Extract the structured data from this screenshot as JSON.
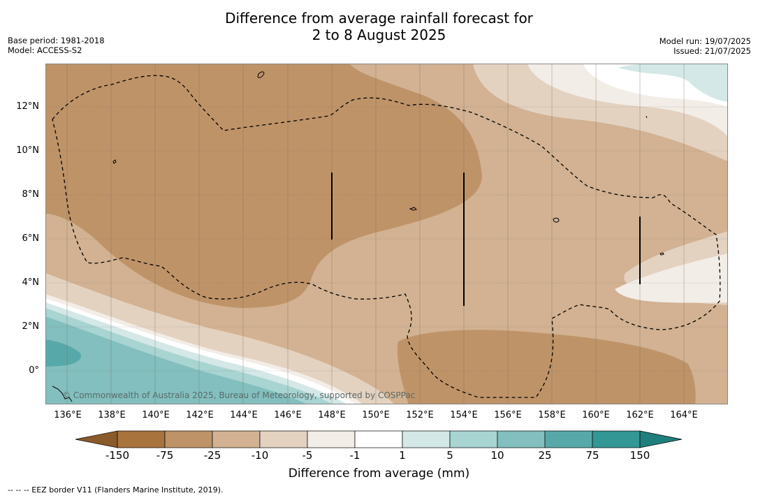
{
  "header": {
    "title_line1": "Difference from average rainfall forecast for",
    "title_line2": "2 to 8 August 2025",
    "base_period": "Base period: 1981-2018",
    "model": "Model: ACCESS-S2",
    "model_run": "Model run: 19/07/2025",
    "issued": "Issued: 21/07/2025"
  },
  "map": {
    "lat_labels": [
      "12°N",
      "10°N",
      "8°N",
      "6°N",
      "4°N",
      "2°N",
      "0°"
    ],
    "lon_labels": [
      "136°E",
      "138°E",
      "140°E",
      "142°E",
      "144°E",
      "146°E",
      "148°E",
      "150°E",
      "152°E",
      "154°E",
      "156°E",
      "158°E",
      "160°E",
      "162°E",
      "164°E"
    ],
    "credit": "© Commonwealth of Australia 2025, Bureau of Meteorology, supported by COSPPac"
  },
  "colorbar": {
    "ticks": [
      "-150",
      "-75",
      "-25",
      "-10",
      "-5",
      "-1",
      "1",
      "5",
      "10",
      "25",
      "75",
      "150"
    ],
    "colors": [
      "#a9733d",
      "#bf9368",
      "#d2b292",
      "#e4d2c1",
      "#f3ede7",
      "#ffffff",
      "#d3e8e7",
      "#a8d4d2",
      "#82bfbe",
      "#57a9a9",
      "#339795"
    ],
    "under_color": "#8b5a2b",
    "over_color": "#1f7f7d",
    "label": "Difference from average (mm)"
  },
  "legend": {
    "footnote": "--  --  -- EEZ border V11 (Flanders Marine Institute, 2019)."
  }
}
